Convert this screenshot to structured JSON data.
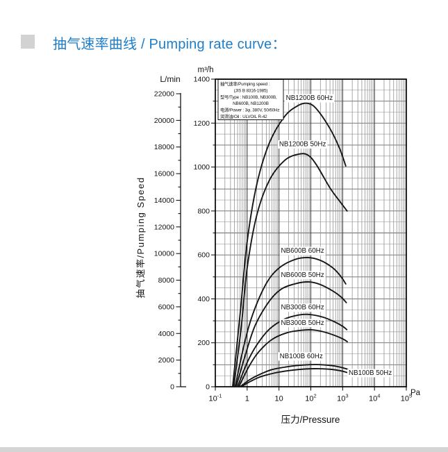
{
  "header": {
    "title": "抽气速率曲线 / Pumping rate curve：",
    "accent_color": "#1e7dc8",
    "bullet_color": "#d2d2d2"
  },
  "footer": {
    "bar_color": "#d4d4d4"
  },
  "chart_data": {
    "type": "line",
    "x_axis": {
      "title": "压力/Pressure",
      "unit": "Pa",
      "scale": "log10",
      "min_exp": -1,
      "max_exp": 5,
      "ticks": [
        {
          "b": "10",
          "s": "-1"
        },
        {
          "b": "1",
          "s": ""
        },
        {
          "b": "10",
          "s": ""
        },
        {
          "b": "10",
          "s": "2"
        },
        {
          "b": "10",
          "s": "3"
        },
        {
          "b": "10",
          "s": "4"
        },
        {
          "b": "10",
          "s": "5"
        }
      ]
    },
    "y_axis_outer": {
      "unit": "L/min",
      "min": 0,
      "max": 22000,
      "label_step": 2000,
      "tick_step": 1000
    },
    "y_axis_inner": {
      "unit": "m³/h",
      "min": 0,
      "max": 1400,
      "label_step": 200,
      "tick_step": 100,
      "grid_step": 50
    },
    "y_title": "抽气速率/Pumping Speed",
    "info_box": {
      "lines": [
        "抽气速率/Pumping speed :",
        "(JIS B 8316-1985)",
        "型号/Type : NB100B, NB300B,",
        "NB600B, NB1200B",
        "电源/Power : 3φ, 380V, 50/60Hz",
        "润滑油/Oil : ULVOIL R-42"
      ],
      "align": [
        "left",
        "center",
        "left",
        "center",
        "left",
        "left"
      ]
    },
    "curve_color": "#161616",
    "series": [
      {
        "name": "NB1200B-60Hz",
        "label": "NB1200B  60Hz",
        "label_at": {
          "pa": 90,
          "v": 1305,
          "anchor": "middle"
        },
        "points": [
          [
            0.35,
            0
          ],
          [
            0.6,
            330
          ],
          [
            1,
            660
          ],
          [
            2,
            920
          ],
          [
            5,
            1110
          ],
          [
            15,
            1230
          ],
          [
            40,
            1280
          ],
          [
            80,
            1290
          ],
          [
            150,
            1265
          ],
          [
            400,
            1175
          ],
          [
            800,
            1085
          ],
          [
            1250,
            1005
          ]
        ]
      },
      {
        "name": "NB1200B-50Hz",
        "label": "NB1200B  50Hz",
        "label_at": {
          "pa": 55,
          "v": 1095,
          "anchor": "middle"
        },
        "points": [
          [
            0.38,
            0
          ],
          [
            0.65,
            270
          ],
          [
            1,
            540
          ],
          [
            2,
            780
          ],
          [
            5,
            940
          ],
          [
            15,
            1030
          ],
          [
            40,
            1058
          ],
          [
            80,
            1055
          ],
          [
            150,
            1010
          ],
          [
            400,
            905
          ],
          [
            800,
            845
          ],
          [
            1380,
            800
          ]
        ]
      },
      {
        "name": "NB600B-60Hz",
        "label": "NB600B  60Hz",
        "label_at": {
          "pa": 55,
          "v": 610,
          "anchor": "middle"
        },
        "points": [
          [
            0.42,
            0
          ],
          [
            0.8,
            190
          ],
          [
            1.5,
            330
          ],
          [
            4,
            470
          ],
          [
            10,
            540
          ],
          [
            30,
            578
          ],
          [
            80,
            588
          ],
          [
            200,
            575
          ],
          [
            500,
            540
          ],
          [
            900,
            500
          ],
          [
            1250,
            468
          ]
        ]
      },
      {
        "name": "NB600B-50Hz",
        "label": "NB600B  50Hz",
        "label_at": {
          "pa": 55,
          "v": 500,
          "anchor": "middle"
        },
        "points": [
          [
            0.45,
            0
          ],
          [
            0.9,
            150
          ],
          [
            1.8,
            280
          ],
          [
            5,
            390
          ],
          [
            12,
            445
          ],
          [
            35,
            470
          ],
          [
            90,
            477
          ],
          [
            200,
            465
          ],
          [
            500,
            435
          ],
          [
            900,
            408
          ],
          [
            1300,
            383
          ]
        ]
      },
      {
        "name": "NB300B-60Hz",
        "label": "NB300B  60Hz",
        "label_at": {
          "pa": 55,
          "v": 352,
          "anchor": "middle"
        },
        "points": [
          [
            0.5,
            0
          ],
          [
            1,
            110
          ],
          [
            2,
            190
          ],
          [
            5,
            262
          ],
          [
            15,
            308
          ],
          [
            40,
            326
          ],
          [
            90,
            329
          ],
          [
            250,
            316
          ],
          [
            600,
            293
          ],
          [
            1000,
            275
          ],
          [
            1350,
            260
          ]
        ]
      },
      {
        "name": "NB300B-50Hz",
        "label": "NB300B  50Hz",
        "label_at": {
          "pa": 55,
          "v": 282,
          "anchor": "middle"
        },
        "points": [
          [
            0.55,
            0
          ],
          [
            1.1,
            88
          ],
          [
            2.2,
            155
          ],
          [
            6,
            215
          ],
          [
            18,
            246
          ],
          [
            50,
            257
          ],
          [
            110,
            259
          ],
          [
            250,
            250
          ],
          [
            600,
            232
          ],
          [
            1000,
            218
          ],
          [
            1400,
            205
          ]
        ]
      },
      {
        "name": "NB100B-60Hz",
        "label": "NB100B  60Hz",
        "label_at": {
          "pa": 50,
          "v": 130,
          "anchor": "middle"
        },
        "points": [
          [
            0.6,
            0
          ],
          [
            1.2,
            32
          ],
          [
            2.5,
            56
          ],
          [
            6,
            78
          ],
          [
            20,
            92
          ],
          [
            60,
            99
          ],
          [
            150,
            101
          ],
          [
            400,
            97
          ],
          [
            800,
            90
          ],
          [
            1500,
            79
          ]
        ]
      },
      {
        "name": "NB100B-50Hz",
        "label": "NB100B  50Hz",
        "label_at": {
          "pa": 1550,
          "v": 54,
          "anchor": "start"
        },
        "points": [
          [
            0.65,
            0
          ],
          [
            1.3,
            25
          ],
          [
            2.6,
            45
          ],
          [
            7,
            62
          ],
          [
            22,
            74
          ],
          [
            70,
            81
          ],
          [
            180,
            82
          ],
          [
            450,
            79
          ],
          [
            900,
            72
          ],
          [
            1600,
            62
          ]
        ]
      }
    ]
  }
}
